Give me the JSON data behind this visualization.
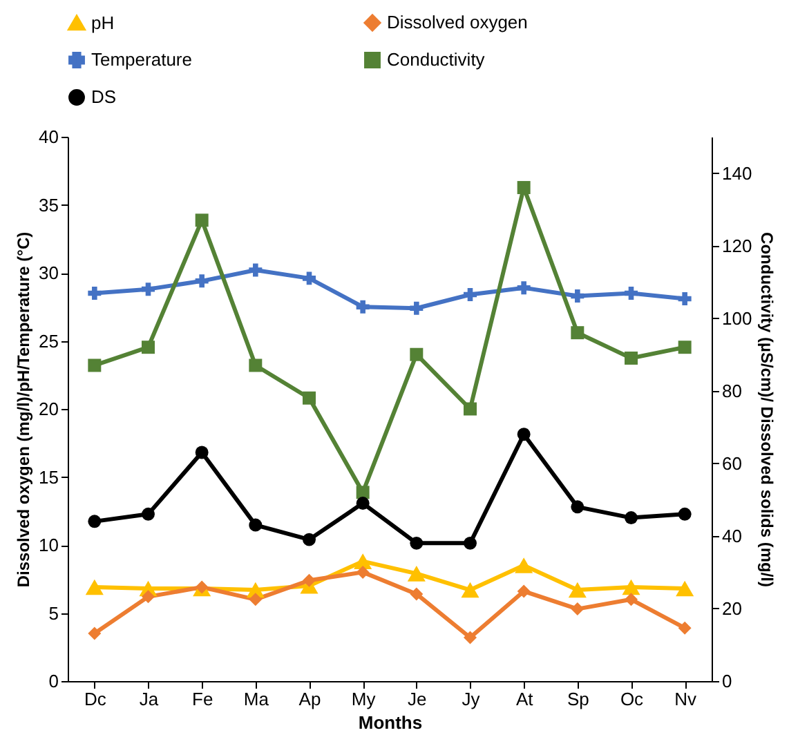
{
  "chart_data": {
    "type": "line",
    "xlabel": "Months",
    "ylabel": "Dissolved oxygen (mg/l)/pH/Temperature (°C)",
    "y2label": "Conductivity (µS/cm)/ Dissolved solids (mg/l)",
    "categories": [
      "Dc",
      "Ja",
      "Fe",
      "Ma",
      "Ap",
      "My",
      "Je",
      "Jy",
      "At",
      "Sp",
      "Oc",
      "Nv"
    ],
    "ylim": [
      0,
      40
    ],
    "yticks": [
      0,
      5,
      10,
      15,
      20,
      25,
      30,
      35,
      40
    ],
    "y2lim": [
      0,
      150
    ],
    "y2ticks": [
      0,
      20,
      40,
      60,
      80,
      100,
      120,
      140
    ],
    "grid": false,
    "legend": "top",
    "line_style": "solid",
    "series": [
      {
        "name": "pH",
        "color": "#ffc000",
        "marker": "triangle",
        "values": [
          6.9,
          6.8,
          6.8,
          6.7,
          7.0,
          8.8,
          7.9,
          6.7,
          8.5,
          6.7,
          6.9,
          6.8
        ]
      },
      {
        "name": "Dissolved oxygen",
        "color": "#ed7d31",
        "marker": "diamond",
        "values": [
          3.5,
          6.2,
          6.9,
          6.0,
          7.4,
          8.0,
          6.4,
          3.2,
          6.6,
          5.3,
          6.0,
          3.9
        ]
      },
      {
        "name": "Temperature",
        "color": "#4472c4",
        "marker": "cross",
        "values": [
          28.5,
          28.8,
          29.4,
          30.2,
          29.6,
          27.5,
          27.4,
          28.4,
          28.9,
          28.3,
          28.5,
          28.1
        ]
      },
      {
        "name": "Conductivity",
        "color": "#548235",
        "marker": "square",
        "axis": "y2",
        "values": [
          87,
          92,
          127,
          87,
          78,
          52,
          90,
          75,
          136,
          96,
          89,
          92
        ]
      },
      {
        "name": "DS",
        "color": "#000000",
        "marker": "circle",
        "axis": "y2",
        "values": [
          44,
          46,
          63,
          43,
          39,
          49,
          38,
          38,
          68,
          48,
          45,
          46
        ]
      }
    ]
  }
}
